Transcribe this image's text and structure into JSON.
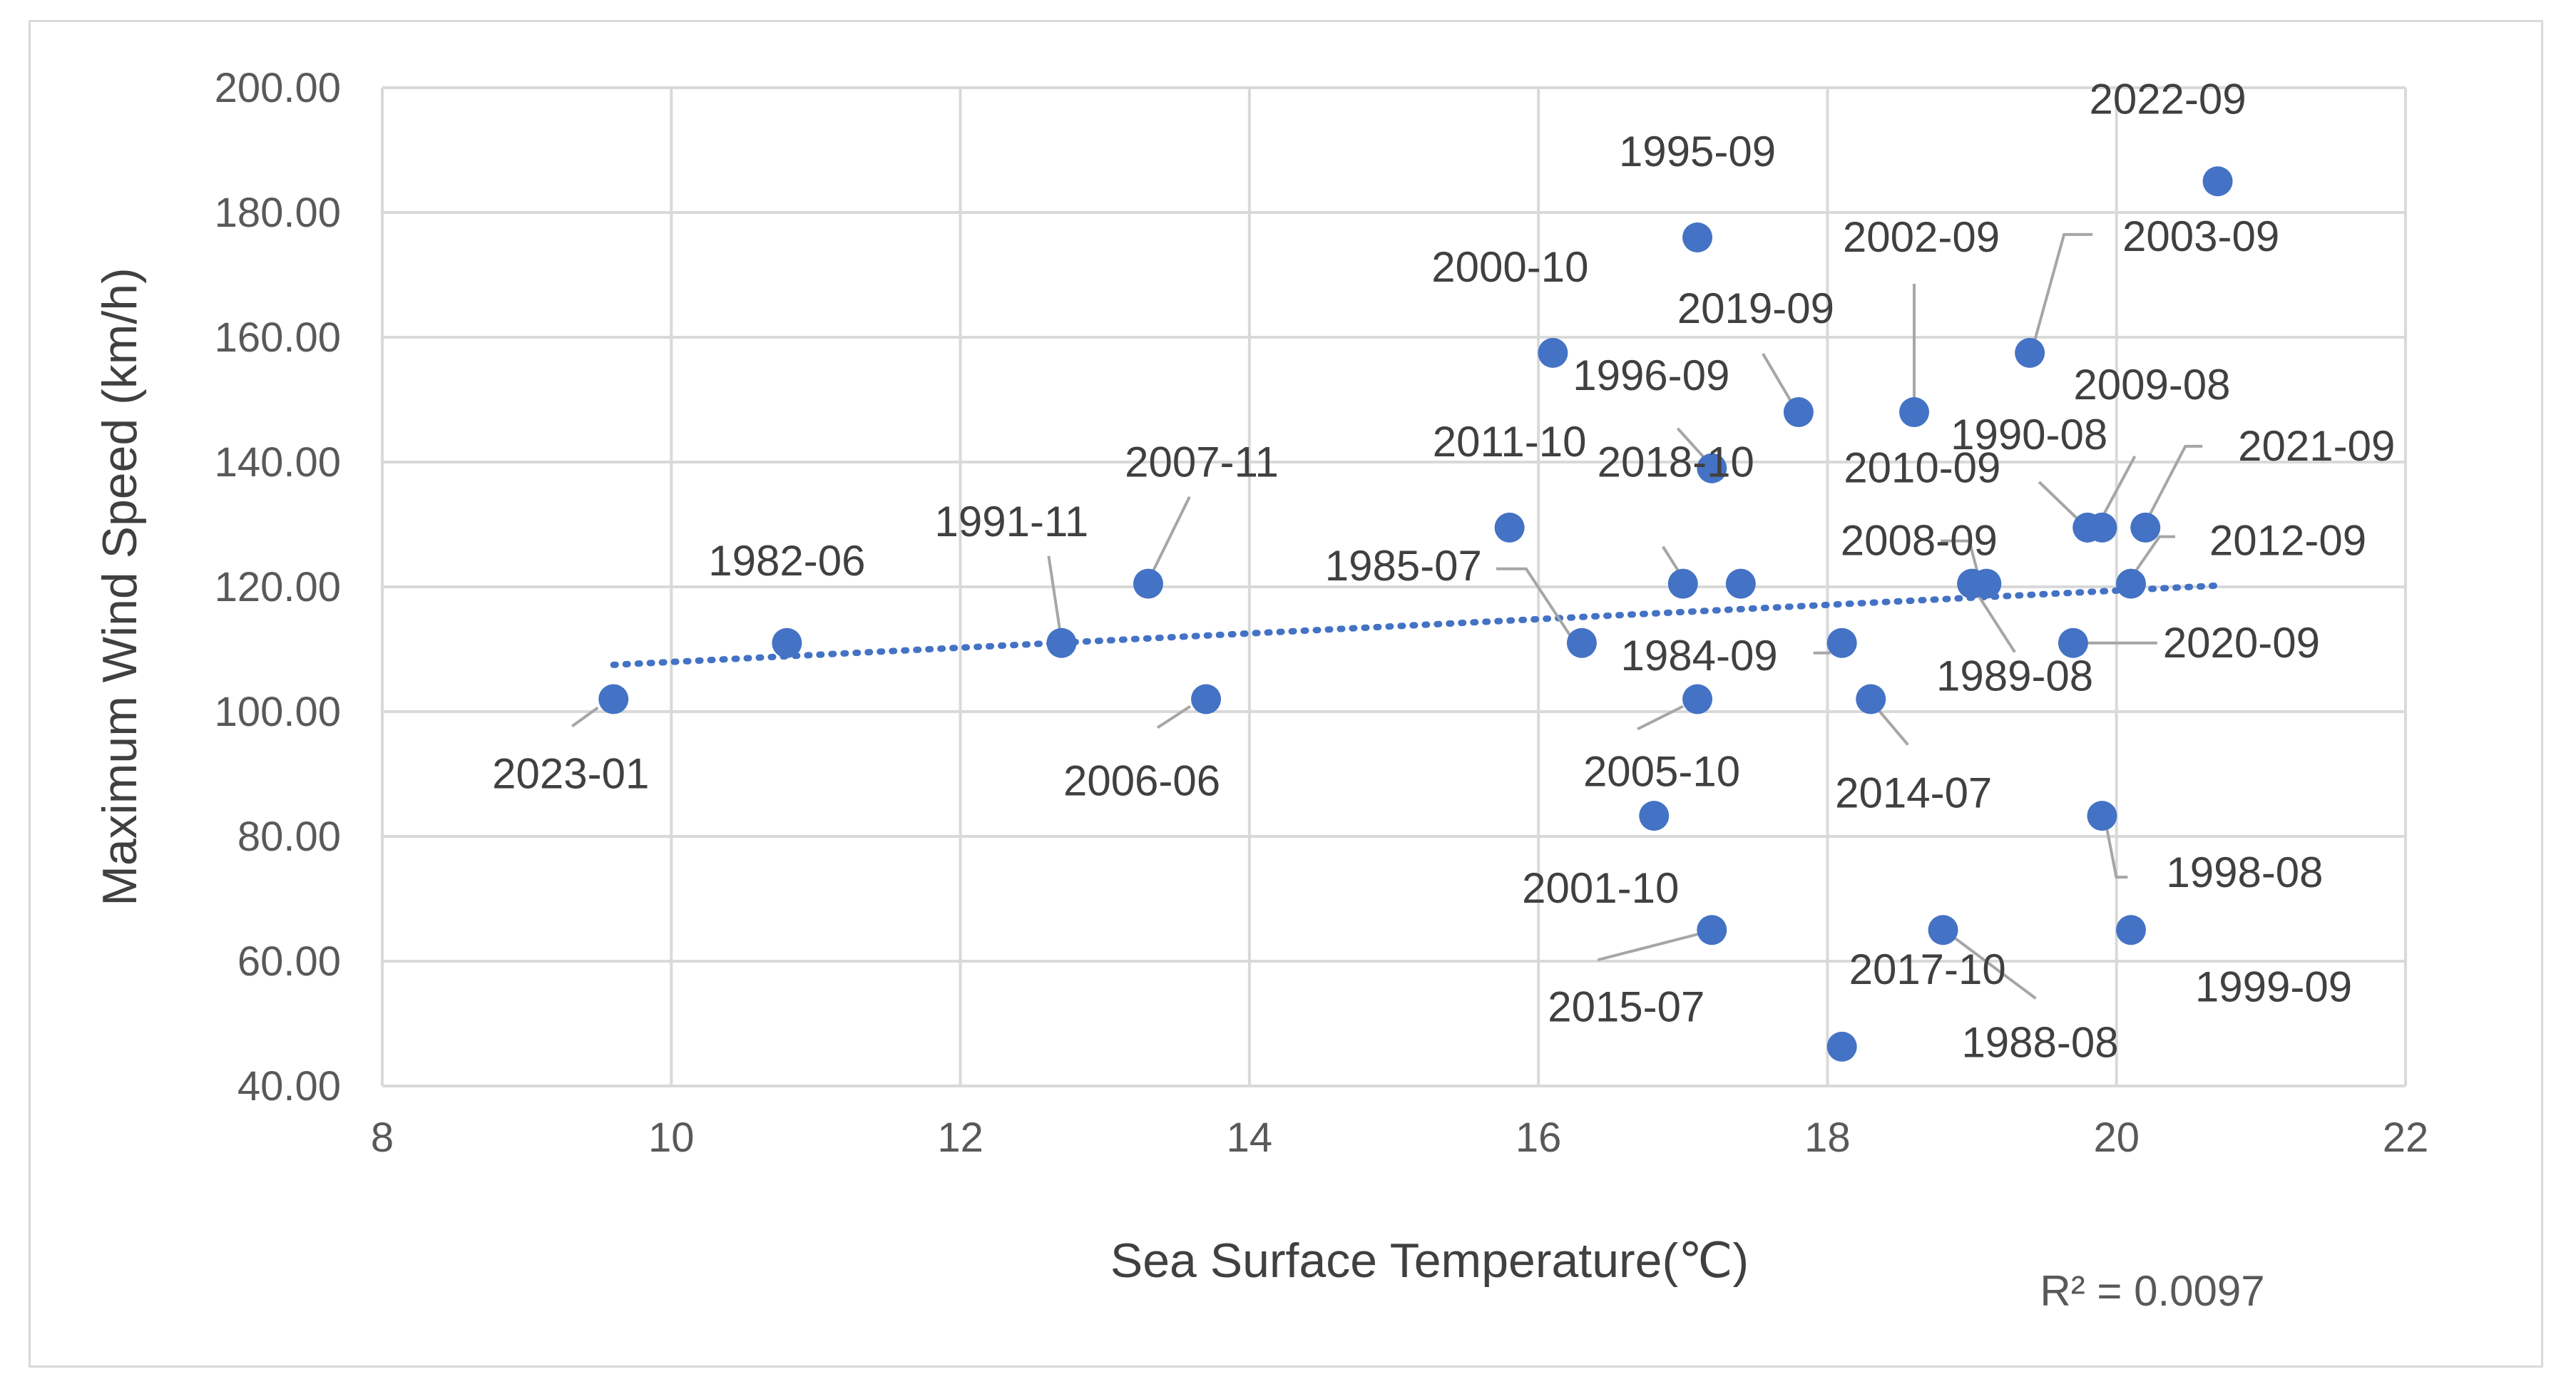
{
  "chart_data": {
    "type": "scatter",
    "title": "",
    "xlabel": "Sea Surface Temperature(℃)",
    "ylabel": "Maximum Wind Speed (km/h)",
    "xlim": [
      8,
      22
    ],
    "ylim": [
      40,
      200
    ],
    "x_ticks": [
      "8",
      "10",
      "12",
      "14",
      "16",
      "18",
      "20",
      "22"
    ],
    "y_ticks": [
      "40.00",
      "60.00",
      "80.00",
      "100.00",
      "120.00",
      "140.00",
      "160.00",
      "180.00",
      "200.00"
    ],
    "grid": true,
    "marker_color": "#4472c4",
    "trendline": {
      "type": "linear",
      "x_start": 9.6,
      "x_end": 20.7,
      "y_start": 107.5,
      "y_end": 120.2,
      "r2_text": "R² = 0.0097"
    },
    "points": [
      {
        "label": "1982-06",
        "x": 10.8,
        "y": 111
      },
      {
        "label": "2023-01",
        "x": 9.6,
        "y": 102
      },
      {
        "label": "1991-11",
        "x": 12.7,
        "y": 111
      },
      {
        "label": "2007-11",
        "x": 13.3,
        "y": 120.5
      },
      {
        "label": "2006-06",
        "x": 13.7,
        "y": 102
      },
      {
        "label": "2011-10",
        "x": 15.8,
        "y": 129.5
      },
      {
        "label": "2000-10",
        "x": 16.1,
        "y": 157.5
      },
      {
        "label": "1985-07",
        "x": 16.3,
        "y": 111
      },
      {
        "label": "2001-10",
        "x": 16.8,
        "y": 83.3
      },
      {
        "label": "2018-10",
        "x": 17.0,
        "y": 120.5
      },
      {
        "label": "1995-09",
        "x": 17.1,
        "y": 176
      },
      {
        "label": "2005-10",
        "x": 17.1,
        "y": 102
      },
      {
        "label": "1996-09",
        "x": 17.2,
        "y": 139
      },
      {
        "label": "2015-07",
        "x": 17.2,
        "y": 65
      },
      {
        "label": "2008-09",
        "x": 17.4,
        "y": 120.5
      },
      {
        "label": "2019-09",
        "x": 17.8,
        "y": 148
      },
      {
        "label": "1984-09",
        "x": 18.1,
        "y": 111
      },
      {
        "label": "2017-10",
        "x": 18.1,
        "y": 46.3
      },
      {
        "label": "2014-07",
        "x": 18.3,
        "y": 102
      },
      {
        "label": "2002-09",
        "x": 18.6,
        "y": 148
      },
      {
        "label": "1988-08",
        "x": 18.8,
        "y": 65
      },
      {
        "label": "1989-08",
        "x": 19.0,
        "y": 120.5
      },
      {
        "label": "2010-09",
        "x": 19.1,
        "y": 120.5
      },
      {
        "label": "2003-09",
        "x": 19.4,
        "y": 157.5
      },
      {
        "label": "2020-09",
        "x": 19.7,
        "y": 111
      },
      {
        "label": "1990-08",
        "x": 19.8,
        "y": 129.5
      },
      {
        "label": "2009-08",
        "x": 19.9,
        "y": 129.5
      },
      {
        "label": "1998-08",
        "x": 19.9,
        "y": 83.3
      },
      {
        "label": "2012-09",
        "x": 20.1,
        "y": 120.5
      },
      {
        "label": "1999-09",
        "x": 20.1,
        "y": 65
      },
      {
        "label": "2021-09",
        "x": 20.2,
        "y": 129.5
      },
      {
        "label": "2022-09",
        "x": 20.7,
        "y": 185
      }
    ]
  }
}
